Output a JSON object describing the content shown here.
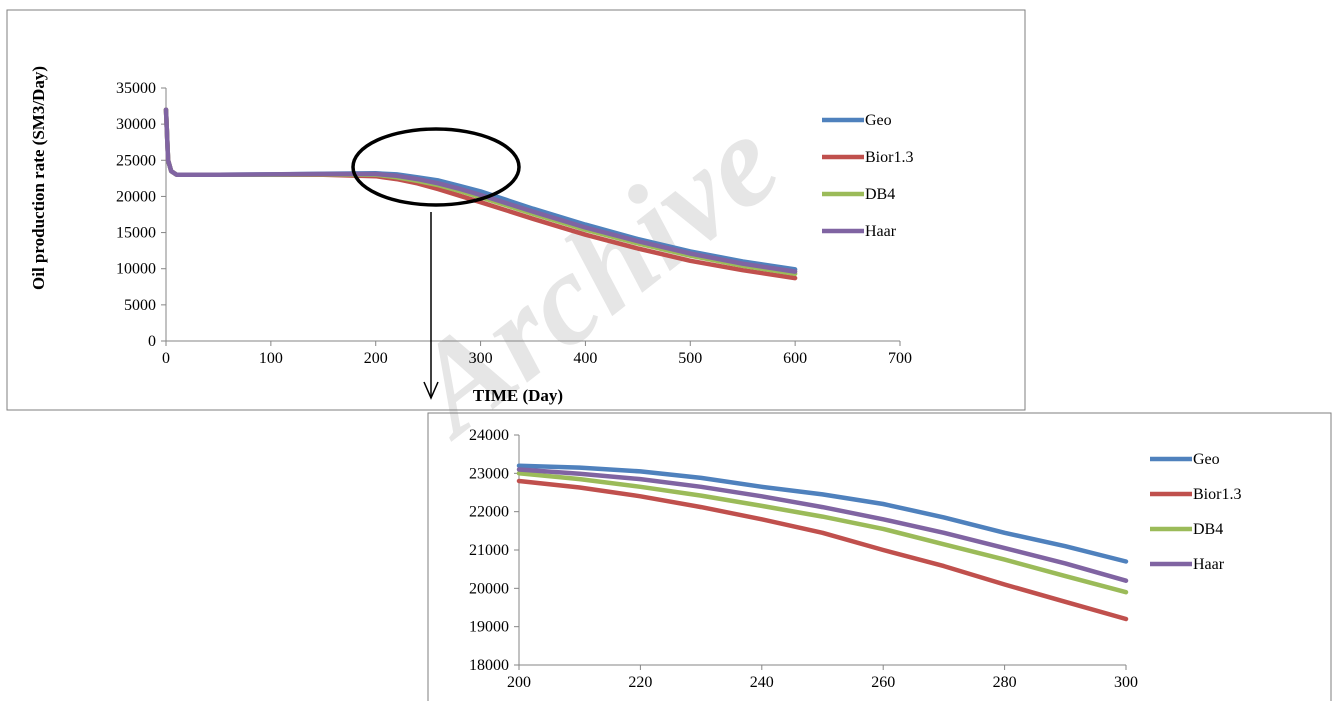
{
  "watermark": "Archive",
  "colors": {
    "Geo": "#4f81bd",
    "Bior1.3": "#c0504d",
    "DB4": "#9bbb59",
    "Haar": "#8064a2"
  },
  "chart_data": [
    {
      "type": "line",
      "title": "",
      "xlabel": "TIME (Day)",
      "ylabel": "Oil production rate (SM3/Day)",
      "xlim": [
        0,
        700
      ],
      "ylim": [
        0,
        35000
      ],
      "xticks": [
        0,
        100,
        200,
        300,
        400,
        500,
        600,
        700
      ],
      "yticks": [
        0,
        5000,
        10000,
        15000,
        20000,
        25000,
        30000,
        35000
      ],
      "grid": false,
      "legend": "right",
      "x": [
        0,
        2,
        5,
        10,
        50,
        100,
        150,
        200,
        220,
        240,
        260,
        280,
        300,
        350,
        400,
        450,
        500,
        550,
        600
      ],
      "series": [
        {
          "name": "Geo",
          "values": [
            32000,
            25000,
            23500,
            23000,
            23000,
            23050,
            23150,
            23200,
            23050,
            22650,
            22200,
            21450,
            20700,
            18300,
            16100,
            14100,
            12400,
            11000,
            9900
          ]
        },
        {
          "name": "Bior1.3",
          "values": [
            32000,
            25000,
            23500,
            23000,
            23000,
            23000,
            23000,
            22800,
            22400,
            21800,
            21000,
            20100,
            19200,
            16900,
            14700,
            12800,
            11100,
            9800,
            8700
          ]
        },
        {
          "name": "DB4",
          "values": [
            32000,
            25000,
            23500,
            23000,
            23000,
            23000,
            23050,
            23000,
            22650,
            22150,
            21550,
            20750,
            19900,
            17600,
            15400,
            13500,
            11800,
            10400,
            9300
          ]
        },
        {
          "name": "Haar",
          "values": [
            32000,
            25000,
            23500,
            23000,
            23000,
            23050,
            23100,
            23100,
            22850,
            22400,
            21800,
            21050,
            20200,
            17900,
            15700,
            13800,
            12100,
            10700,
            9600
          ]
        }
      ]
    },
    {
      "type": "line",
      "title": "",
      "xlabel": "",
      "ylabel": "",
      "xlim": [
        200,
        300
      ],
      "ylim": [
        18000,
        24000
      ],
      "xticks": [
        200,
        220,
        240,
        260,
        280,
        300
      ],
      "yticks": [
        18000,
        19000,
        20000,
        21000,
        22000,
        23000,
        24000
      ],
      "grid": false,
      "legend": "right",
      "x": [
        200,
        210,
        220,
        230,
        240,
        250,
        260,
        270,
        280,
        290,
        300
      ],
      "series": [
        {
          "name": "Geo",
          "values": [
            23200,
            23150,
            23050,
            22880,
            22650,
            22450,
            22200,
            21850,
            21450,
            21100,
            20700
          ]
        },
        {
          "name": "Bior1.3",
          "values": [
            22800,
            22630,
            22400,
            22120,
            21800,
            21450,
            21000,
            20580,
            20100,
            19650,
            19200
          ]
        },
        {
          "name": "DB4",
          "values": [
            23000,
            22850,
            22650,
            22420,
            22150,
            21870,
            21550,
            21150,
            20750,
            20320,
            19900
          ]
        },
        {
          "name": "Haar",
          "values": [
            23100,
            22990,
            22850,
            22650,
            22400,
            22120,
            21800,
            21450,
            21050,
            20650,
            20200
          ]
        }
      ]
    }
  ]
}
